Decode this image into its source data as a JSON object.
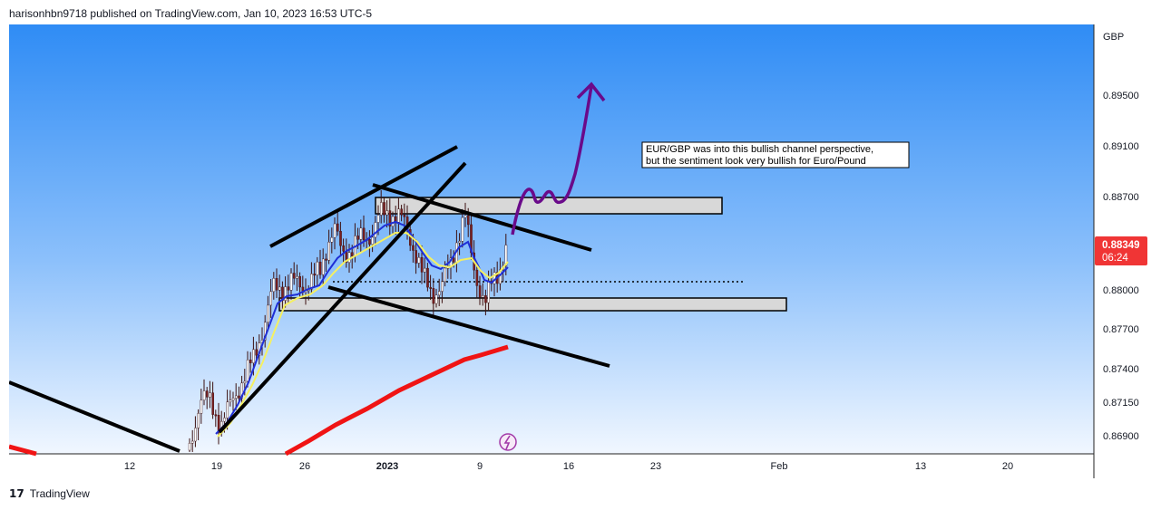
{
  "header": {
    "publish_line": "harisonhbn9718 published on TradingView.com, Jan 10, 2023 16:53 UTC-5"
  },
  "footer": {
    "brand": "TradingView",
    "logo_glyph": "17"
  },
  "chart_data": {
    "type": "candlestick",
    "symbol": "EUR/GBP",
    "currency_label": "GBP",
    "y_ticks": [
      "0.89500",
      "0.89100",
      "0.88700",
      "0.88000",
      "0.87700",
      "0.87400",
      "0.87150",
      "0.86900"
    ],
    "ylim": [
      0.8683,
      0.8985
    ],
    "x_ticks": [
      "12",
      "19",
      "26",
      "2023",
      "9",
      "16",
      "23",
      "Feb",
      "13",
      "20"
    ],
    "last_price": "0.88349",
    "countdown": "06:24",
    "annotation": [
      "EUR/GBP was into this bullish channel perspective,",
      "but the sentiment look very bullish for Euro/Pound"
    ],
    "zones": [
      {
        "name": "resistance-zone",
        "from": 0.8855,
        "to": 0.8866
      },
      {
        "name": "support-zone",
        "from": 0.8792,
        "to": 0.8801
      }
    ],
    "dotted_level": 0.8812,
    "colors": {
      "background_top": "#2f8cf5",
      "background_bottom": "#e9f3ff",
      "up_candle": "#ffffff",
      "down_candle": "#7a1f1f",
      "ema_fast": "#1f2fd6",
      "ema_slow": "#f5f060",
      "ma_long": "#f01414",
      "projection": "#6a0a8a",
      "price_badge": "#f03535"
    }
  }
}
